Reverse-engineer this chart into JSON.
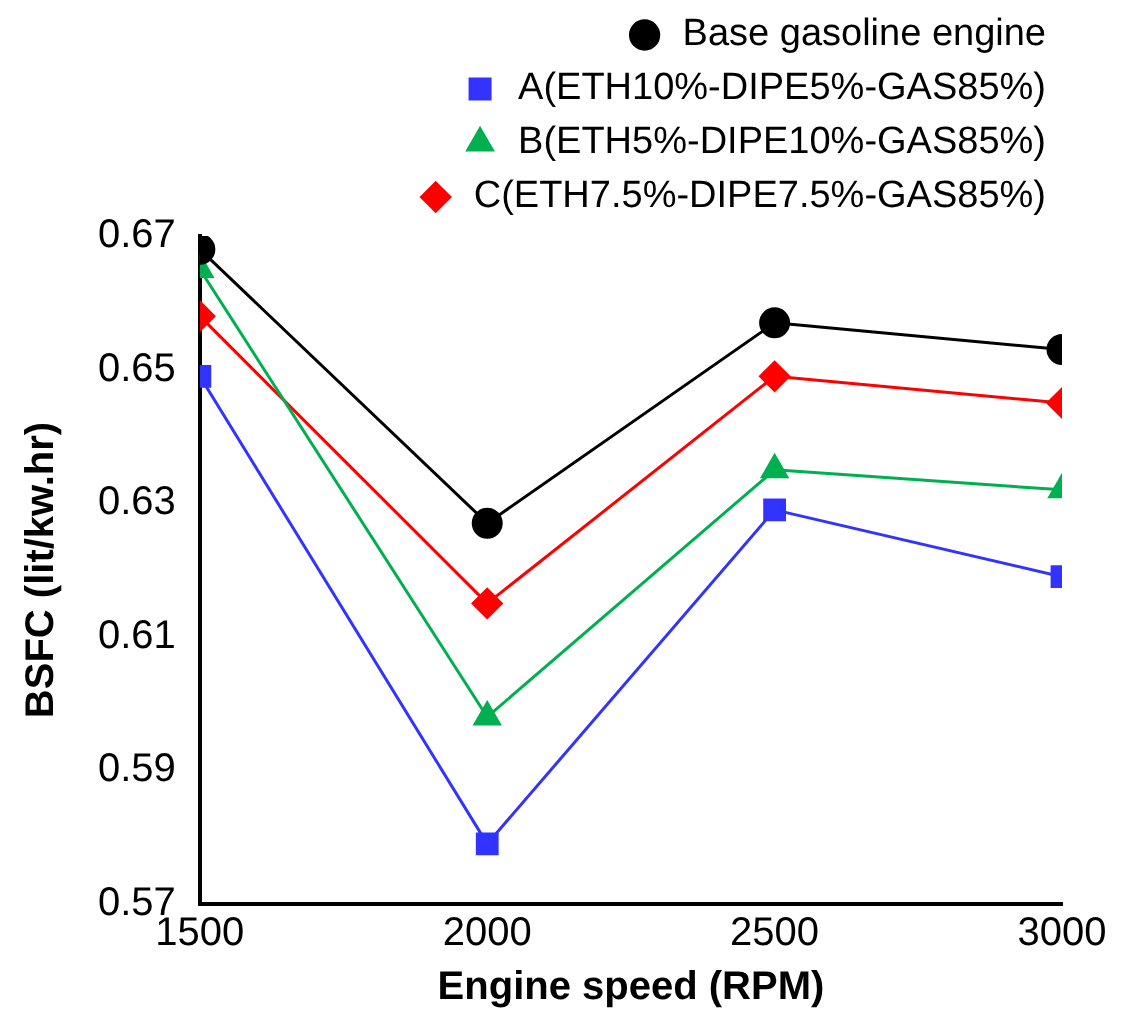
{
  "chart_data": {
    "type": "line",
    "xlabel": "Engine speed (RPM)",
    "ylabel": "BSFC (lit/kw.hr)",
    "x": [
      1500,
      2000,
      2500,
      3000
    ],
    "series": [
      {
        "name": "Base gasoline engine",
        "color": "#000000",
        "marker": "circle",
        "values": [
          0.668,
          0.627,
          0.657,
          0.653
        ]
      },
      {
        "name": "A(ETH10%-DIPE5%-GAS85%)",
        "color": "#3333ff",
        "marker": "square",
        "values": [
          0.649,
          0.579,
          0.629,
          0.619
        ]
      },
      {
        "name": "B(ETH5%-DIPE10%-GAS85%)",
        "color": "#00b050",
        "marker": "triangle",
        "values": [
          0.665,
          0.598,
          0.635,
          0.632
        ]
      },
      {
        "name": "C(ETH7.5%-DIPE7.5%-GAS85%)",
        "color": "#ff0000",
        "marker": "diamond",
        "values": [
          0.658,
          0.615,
          0.649,
          0.645
        ]
      }
    ],
    "xlim": [
      1500,
      3000
    ],
    "xticks": [
      1500,
      2000,
      2500,
      3000
    ],
    "ylim": [
      0.57,
      0.67
    ],
    "yticks": [
      0.57,
      0.59,
      0.61,
      0.63,
      0.65,
      0.67
    ],
    "grid": false,
    "legend": "top",
    "line_style": "solid"
  }
}
